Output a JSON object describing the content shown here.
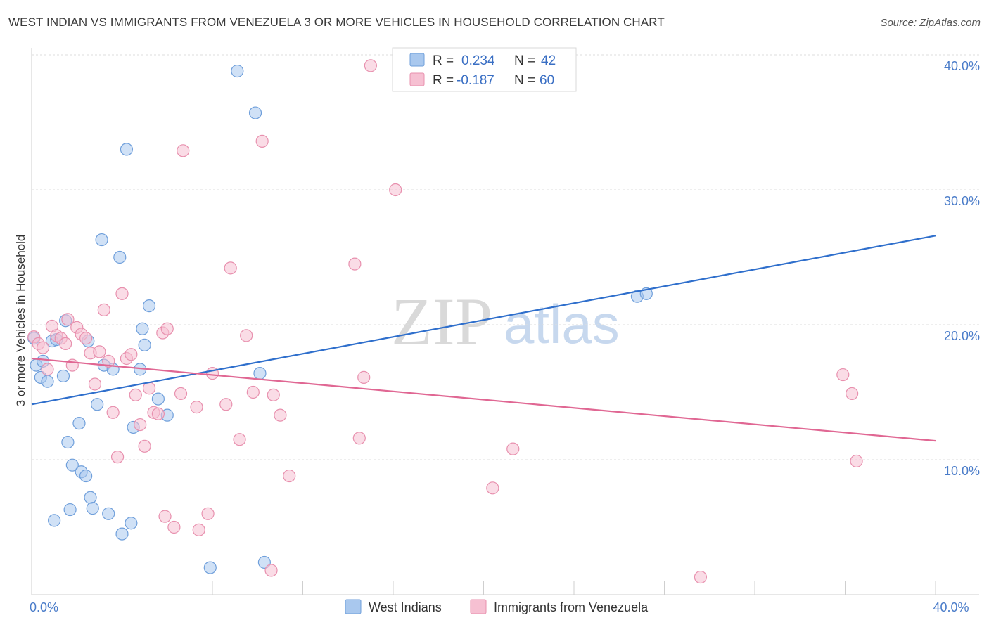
{
  "header": {
    "title": "WEST INDIAN VS IMMIGRANTS FROM VENEZUELA 3 OR MORE VEHICLES IN HOUSEHOLD CORRELATION CHART",
    "source": "Source: ZipAtlas.com"
  },
  "watermark": {
    "zip": "ZIP",
    "atlas": "atlas"
  },
  "chart_data": {
    "type": "scatter",
    "title": "WEST INDIAN VS IMMIGRANTS FROM VENEZUELA 3 OR MORE VEHICLES IN HOUSEHOLD CORRELATION CHART",
    "xlabel": "",
    "ylabel": "3 or more Vehicles in Household",
    "xlim": [
      0,
      40
    ],
    "ylim": [
      0,
      40
    ],
    "x_tick_labels": [
      {
        "value": 0,
        "label": "0.0%"
      },
      {
        "value": 40,
        "label": "40.0%"
      }
    ],
    "y_tick_labels": [
      {
        "value": 10,
        "label": "10.0%"
      },
      {
        "value": 20,
        "label": "20.0%"
      },
      {
        "value": 30,
        "label": "30.0%"
      },
      {
        "value": 40,
        "label": "40.0%"
      }
    ],
    "legend_stats": [
      {
        "r_label": "R =",
        "r": "0.234",
        "n_label": "N =",
        "n": "42"
      },
      {
        "r_label": "R =",
        "r": "-0.187",
        "n_label": "N =",
        "n": "60"
      }
    ],
    "series": [
      {
        "name": "West Indians",
        "color": "#a9c8ee",
        "stroke": "#6f9fdb",
        "line_color": "#2f6fcc",
        "trend": {
          "x0": 0,
          "y0": 14.1,
          "x1": 40,
          "y1": 26.6
        },
        "points": [
          [
            0.1,
            19.0
          ],
          [
            0.2,
            17.0
          ],
          [
            0.4,
            16.1
          ],
          [
            0.5,
            17.3
          ],
          [
            0.7,
            15.8
          ],
          [
            0.9,
            18.8
          ],
          [
            1.0,
            5.5
          ],
          [
            1.1,
            18.9
          ],
          [
            1.4,
            16.2
          ],
          [
            1.5,
            20.3
          ],
          [
            1.6,
            11.3
          ],
          [
            1.7,
            6.3
          ],
          [
            1.8,
            9.6
          ],
          [
            2.1,
            12.7
          ],
          [
            2.2,
            9.1
          ],
          [
            2.4,
            8.8
          ],
          [
            2.5,
            18.8
          ],
          [
            2.6,
            7.2
          ],
          [
            2.7,
            6.4
          ],
          [
            2.9,
            14.1
          ],
          [
            3.1,
            26.3
          ],
          [
            3.2,
            17.0
          ],
          [
            3.4,
            6.0
          ],
          [
            3.6,
            16.7
          ],
          [
            3.9,
            25.0
          ],
          [
            4.0,
            4.5
          ],
          [
            4.2,
            33.0
          ],
          [
            4.4,
            5.3
          ],
          [
            4.5,
            12.4
          ],
          [
            4.8,
            16.7
          ],
          [
            4.9,
            19.7
          ],
          [
            5.0,
            18.5
          ],
          [
            5.2,
            21.4
          ],
          [
            5.6,
            14.5
          ],
          [
            6.0,
            13.3
          ],
          [
            9.1,
            38.8
          ],
          [
            9.9,
            35.7
          ],
          [
            10.1,
            16.4
          ],
          [
            10.3,
            2.4
          ],
          [
            26.8,
            22.1
          ],
          [
            27.2,
            22.3
          ],
          [
            7.9,
            2.0
          ]
        ]
      },
      {
        "name": "Immigrants from Venezuela",
        "color": "#f6c0d2",
        "stroke": "#e890ae",
        "line_color": "#e06793",
        "trend": {
          "x0": 0,
          "y0": 17.5,
          "x1": 40,
          "y1": 11.4
        },
        "points": [
          [
            0.1,
            19.1
          ],
          [
            0.3,
            18.6
          ],
          [
            0.5,
            18.3
          ],
          [
            0.7,
            16.7
          ],
          [
            0.9,
            19.9
          ],
          [
            1.1,
            19.2
          ],
          [
            1.3,
            19.0
          ],
          [
            1.5,
            18.6
          ],
          [
            1.6,
            20.4
          ],
          [
            1.8,
            17.0
          ],
          [
            2.0,
            19.8
          ],
          [
            2.2,
            19.3
          ],
          [
            2.4,
            19.0
          ],
          [
            2.6,
            17.9
          ],
          [
            2.8,
            15.6
          ],
          [
            3.0,
            18.0
          ],
          [
            3.2,
            21.1
          ],
          [
            3.4,
            17.3
          ],
          [
            3.6,
            13.5
          ],
          [
            3.8,
            10.2
          ],
          [
            4.0,
            22.3
          ],
          [
            4.2,
            17.5
          ],
          [
            4.4,
            17.8
          ],
          [
            4.6,
            14.8
          ],
          [
            4.8,
            12.6
          ],
          [
            5.0,
            11.0
          ],
          [
            5.2,
            15.3
          ],
          [
            5.4,
            13.5
          ],
          [
            5.6,
            13.4
          ],
          [
            5.8,
            19.4
          ],
          [
            6.0,
            19.7
          ],
          [
            5.9,
            5.8
          ],
          [
            6.3,
            5.0
          ],
          [
            6.6,
            14.9
          ],
          [
            6.7,
            32.9
          ],
          [
            7.3,
            13.9
          ],
          [
            7.4,
            4.8
          ],
          [
            7.8,
            6.0
          ],
          [
            8.0,
            16.4
          ],
          [
            8.6,
            14.1
          ],
          [
            8.8,
            24.2
          ],
          [
            9.2,
            11.5
          ],
          [
            9.5,
            19.2
          ],
          [
            9.8,
            15.0
          ],
          [
            10.2,
            33.6
          ],
          [
            10.6,
            1.8
          ],
          [
            10.7,
            14.8
          ],
          [
            11.0,
            13.3
          ],
          [
            11.4,
            8.8
          ],
          [
            14.3,
            24.5
          ],
          [
            14.5,
            11.6
          ],
          [
            14.7,
            16.1
          ],
          [
            15.0,
            39.2
          ],
          [
            16.1,
            30.0
          ],
          [
            20.4,
            7.9
          ],
          [
            21.3,
            10.8
          ],
          [
            29.6,
            1.3
          ],
          [
            35.9,
            16.3
          ],
          [
            36.3,
            14.9
          ],
          [
            36.5,
            9.9
          ]
        ]
      }
    ]
  }
}
